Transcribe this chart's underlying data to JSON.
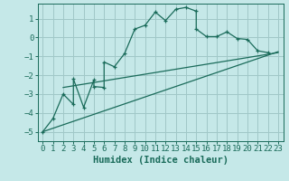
{
  "xlabel": "Humidex (Indice chaleur)",
  "bg_color": "#c5e8e8",
  "grid_color": "#a0c8c8",
  "line_color": "#1a6b5a",
  "xlim": [
    -0.5,
    23.5
  ],
  "ylim": [
    -5.5,
    1.8
  ],
  "yticks": [
    -5,
    -4,
    -3,
    -2,
    -1,
    0,
    1
  ],
  "xticks": [
    0,
    1,
    2,
    3,
    4,
    5,
    6,
    7,
    8,
    9,
    10,
    11,
    12,
    13,
    14,
    15,
    16,
    17,
    18,
    19,
    20,
    21,
    22,
    23
  ],
  "curve_x": [
    0,
    1,
    2,
    3,
    3,
    4,
    5,
    5,
    6,
    6,
    7,
    8,
    9,
    10,
    11,
    12,
    13,
    14,
    15,
    15,
    16,
    17,
    18,
    19,
    20,
    21,
    22
  ],
  "curve_y": [
    -5.0,
    -4.3,
    -3.0,
    -3.55,
    -2.2,
    -3.7,
    -2.25,
    -2.6,
    -2.65,
    -1.3,
    -1.55,
    -0.85,
    0.45,
    0.65,
    1.35,
    0.9,
    1.5,
    1.6,
    1.4,
    0.45,
    0.05,
    0.05,
    0.3,
    -0.05,
    -0.1,
    -0.7,
    -0.8
  ],
  "line1_x": [
    0,
    23
  ],
  "line1_y": [
    -5.0,
    -0.75
  ],
  "line2_x": [
    2,
    23
  ],
  "line2_y": [
    -2.65,
    -0.8
  ],
  "tick_fontsize": 6.5,
  "xlabel_fontsize": 7.5
}
